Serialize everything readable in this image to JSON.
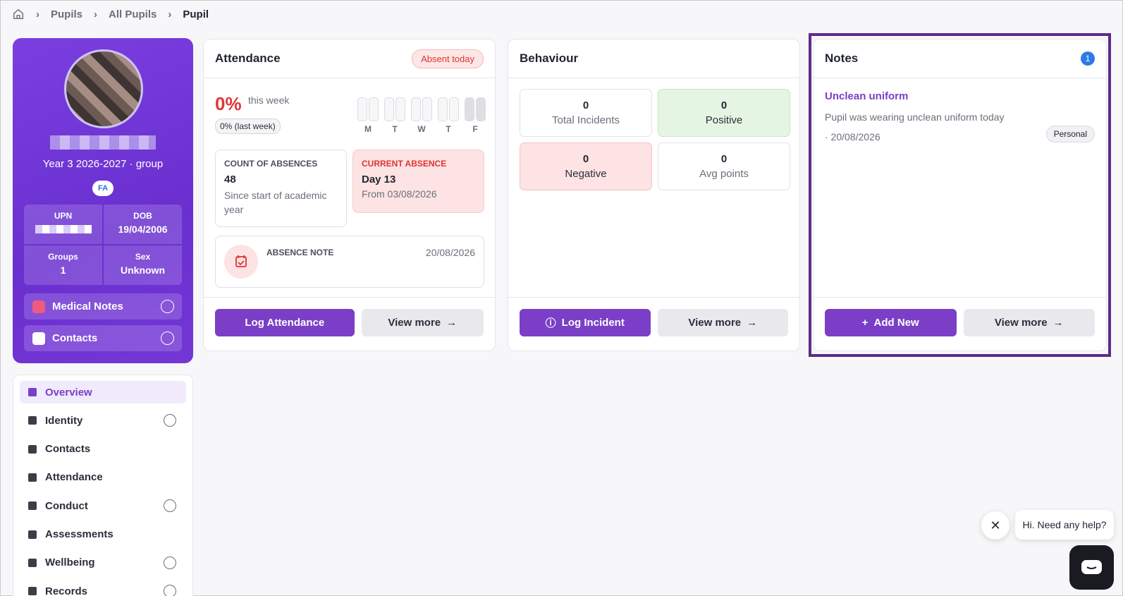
{
  "breadcrumb": [
    "Pupils",
    "All Pupils",
    "Pupil"
  ],
  "profile": {
    "class": "Year 3 2026-2027 · group",
    "badge": "FA",
    "fields": [
      {
        "label": "UPN"
      },
      {
        "label": "DOB",
        "value": "19/04/2006"
      },
      {
        "label": "Groups",
        "value": "1"
      },
      {
        "label": "Sex",
        "value": "Unknown"
      }
    ],
    "accordions": [
      "Medical Notes",
      "Contacts"
    ]
  },
  "nav": [
    {
      "label": "Overview",
      "active": true
    },
    {
      "label": "Identity",
      "expandable": true
    },
    {
      "label": "Contacts"
    },
    {
      "label": "Attendance"
    },
    {
      "label": "Conduct",
      "expandable": true
    },
    {
      "label": "Assessments"
    },
    {
      "label": "Wellbeing",
      "expandable": true
    },
    {
      "label": "Records",
      "expandable": true
    }
  ],
  "attendance": {
    "title": "Attendance",
    "status": "Absent today",
    "percent": "0%",
    "percent_caption": "this week",
    "last_week": "0% (last week)",
    "days": [
      "M",
      "T",
      "W",
      "T",
      "F"
    ],
    "count_card": {
      "label": "COUNT OF ABSENCES",
      "value": "48",
      "caption": "Since start of academic year"
    },
    "current_card": {
      "label": "CURRENT ABSENCE",
      "value": "Day 13",
      "caption": "From 03/08/2026"
    },
    "note": {
      "label": "ABSENCE NOTE",
      "date": "20/08/2026"
    },
    "actions": [
      "Log Attendance",
      "View more"
    ]
  },
  "behaviour": {
    "title": "Behaviour",
    "stats": [
      {
        "value": "0",
        "label": "Total Incidents"
      },
      {
        "value": "0",
        "label": "Positive"
      },
      {
        "value": "0",
        "label": "Negative"
      },
      {
        "value": "0",
        "label": "Avg points"
      }
    ],
    "actions": [
      "Log Incident",
      "View more"
    ]
  },
  "notes": {
    "title": "Notes",
    "count": "1",
    "items": [
      {
        "title": "Unclean uniform",
        "text": "Pupil was wearing unclean uniform today",
        "date": "· 20/08/2026",
        "tag": "Personal"
      }
    ],
    "actions": [
      "Add New",
      "View more"
    ]
  },
  "chat": {
    "message": "Hi. Need any help?"
  }
}
